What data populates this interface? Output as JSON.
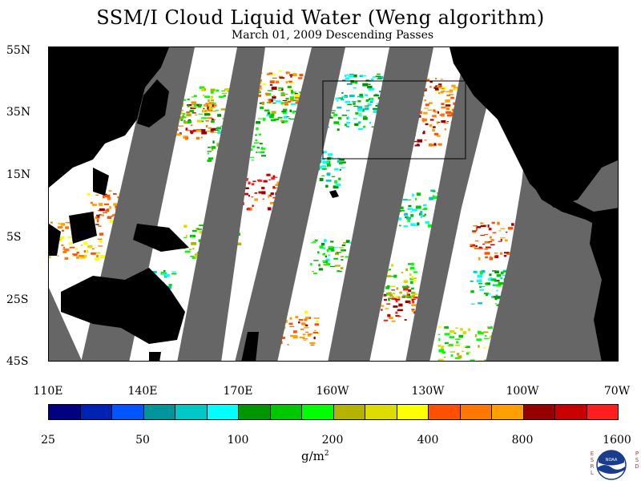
{
  "header": {
    "title": "SSM/I Cloud Liquid Water (Weng algorithm)",
    "subtitle": "March 01, 2009  Descending Passes"
  },
  "map": {
    "lat_labels": [
      "55N",
      "35N",
      "15N",
      "5S",
      "25S",
      "45S"
    ],
    "lon_labels": [
      "110E",
      "140E",
      "170E",
      "160W",
      "130W",
      "100W",
      "70W"
    ],
    "colors": {
      "land": "#000000",
      "no_data": "#666666",
      "ocean_clear": "#ffffff"
    }
  },
  "colorbar": {
    "colors": [
      "#000080",
      "#0022b4",
      "#0055ff",
      "#00959a",
      "#00c8c8",
      "#00ffff",
      "#009600",
      "#00c800",
      "#00ff00",
      "#b4b400",
      "#dcdc00",
      "#ffff00",
      "#ff5000",
      "#ff7800",
      "#ffa000",
      "#960000",
      "#c80000",
      "#ff1e1e"
    ],
    "tick_labels": [
      "25",
      "50",
      "100",
      "200",
      "400",
      "800",
      "1600"
    ],
    "units": "g/m",
    "units_sup": "2"
  },
  "logo": {
    "left_text": [
      "E",
      "S",
      "R",
      "L"
    ],
    "right_text": [
      "P",
      "S",
      "D"
    ],
    "name": "NOAA"
  }
}
